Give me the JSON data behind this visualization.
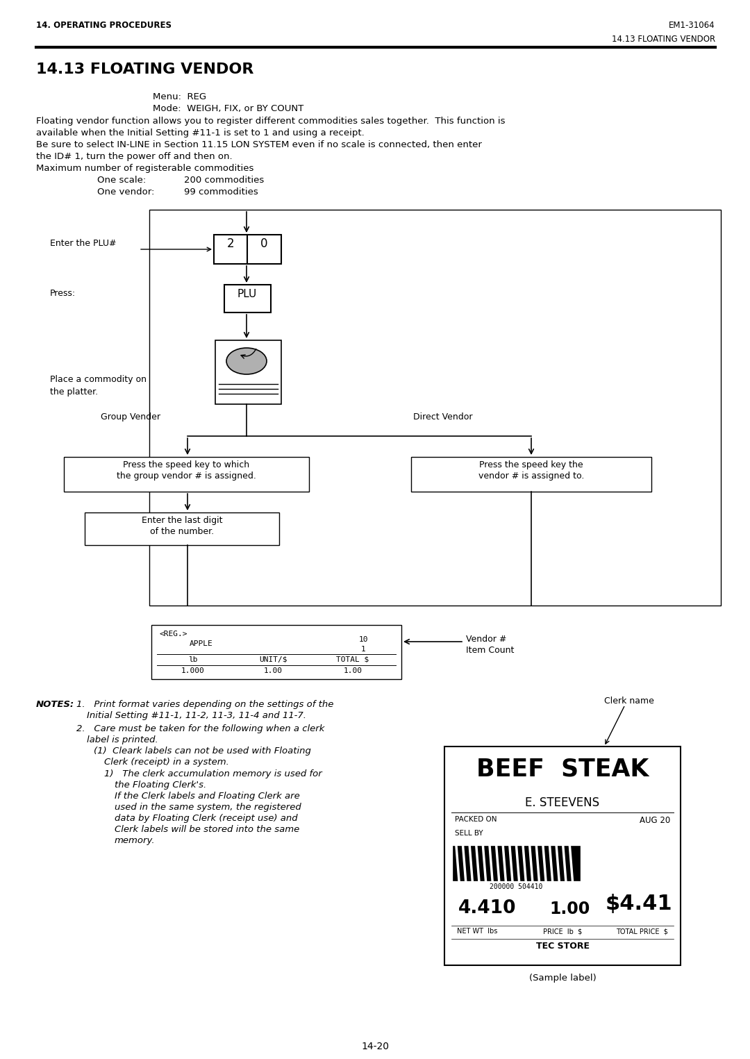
{
  "page_header_left": "14. OPERATING PROCEDURES",
  "page_header_right": "EM1-31064",
  "page_subheader_right": "14.13 FLOATING VENDOR",
  "section_title": "14.13 FLOATING VENDOR",
  "menu_line": "Menu:  REG",
  "mode_line": "Mode:  WEIGH, FIX, or BY COUNT",
  "page_number": "14-20",
  "clerk_name_label": "Clerk name",
  "sample_label": "(Sample label)",
  "bg_color": "#ffffff",
  "text_color": "#000000"
}
